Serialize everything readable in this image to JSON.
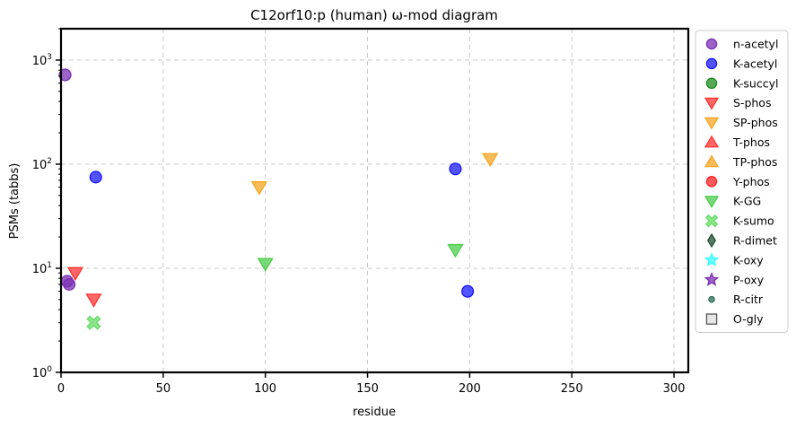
{
  "chart_data": {
    "type": "scatter",
    "title": "C12orf10:p (human) ω-mod diagram",
    "xlabel": "residue",
    "ylabel": "PSMs (tabbs)",
    "xlim": [
      0,
      307
    ],
    "ylim": [
      1,
      2000
    ],
    "yscale": "log",
    "xticks": [
      0,
      50,
      100,
      150,
      200,
      250,
      300
    ],
    "yticks": [
      {
        "value": 1,
        "base": "10",
        "exp": "0"
      },
      {
        "value": 10,
        "base": "10",
        "exp": "1"
      },
      {
        "value": 100,
        "base": "10",
        "exp": "2"
      },
      {
        "value": 1000,
        "base": "10",
        "exp": "3"
      }
    ],
    "grid": true,
    "legend_position": "outside-right",
    "series": [
      {
        "name": "n-acetyl",
        "marker": "circle",
        "color": "#7b2fb5",
        "points": [
          [
            2,
            720
          ],
          [
            3,
            7.5
          ],
          [
            4,
            7
          ]
        ]
      },
      {
        "name": "K-acetyl",
        "marker": "circle",
        "color": "#1a1aff",
        "points": [
          [
            17,
            75
          ],
          [
            193,
            90
          ],
          [
            199,
            6
          ]
        ]
      },
      {
        "name": "K-succyl",
        "marker": "circle",
        "color": "#1e8c1e",
        "points": []
      },
      {
        "name": "S-phos",
        "marker": "triangle-down",
        "color": "#ff3333",
        "points": [
          [
            7,
            9
          ],
          [
            16,
            5
          ]
        ]
      },
      {
        "name": "SP-phos",
        "marker": "triangle-down",
        "color": "#f5a623",
        "points": [
          [
            97,
            60
          ],
          [
            210,
            112
          ]
        ]
      },
      {
        "name": "T-phos",
        "marker": "triangle-up",
        "color": "#ff3333",
        "points": []
      },
      {
        "name": "TP-phos",
        "marker": "triangle-up",
        "color": "#f5a623",
        "points": []
      },
      {
        "name": "Y-phos",
        "marker": "circle",
        "color": "#ff2222",
        "points": []
      },
      {
        "name": "K-GG",
        "marker": "triangle-down",
        "color": "#4ccd4c",
        "points": [
          [
            100,
            11
          ],
          [
            193,
            15
          ]
        ]
      },
      {
        "name": "K-sumo",
        "marker": "x",
        "color": "#66dd66",
        "points": [
          [
            16,
            3
          ]
        ]
      },
      {
        "name": "R-dimet",
        "marker": "diamond",
        "color": "#1f4f3a",
        "points": []
      },
      {
        "name": "K-oxy",
        "marker": "star",
        "color": "#33ffff",
        "points": []
      },
      {
        "name": "P-oxy",
        "marker": "star",
        "color": "#7b2fb5",
        "points": []
      },
      {
        "name": "R-citr",
        "marker": "small-circle",
        "color": "#2f6f5a",
        "points": []
      },
      {
        "name": "O-gly",
        "marker": "square",
        "color": "#e6e6e6",
        "points": []
      }
    ]
  }
}
